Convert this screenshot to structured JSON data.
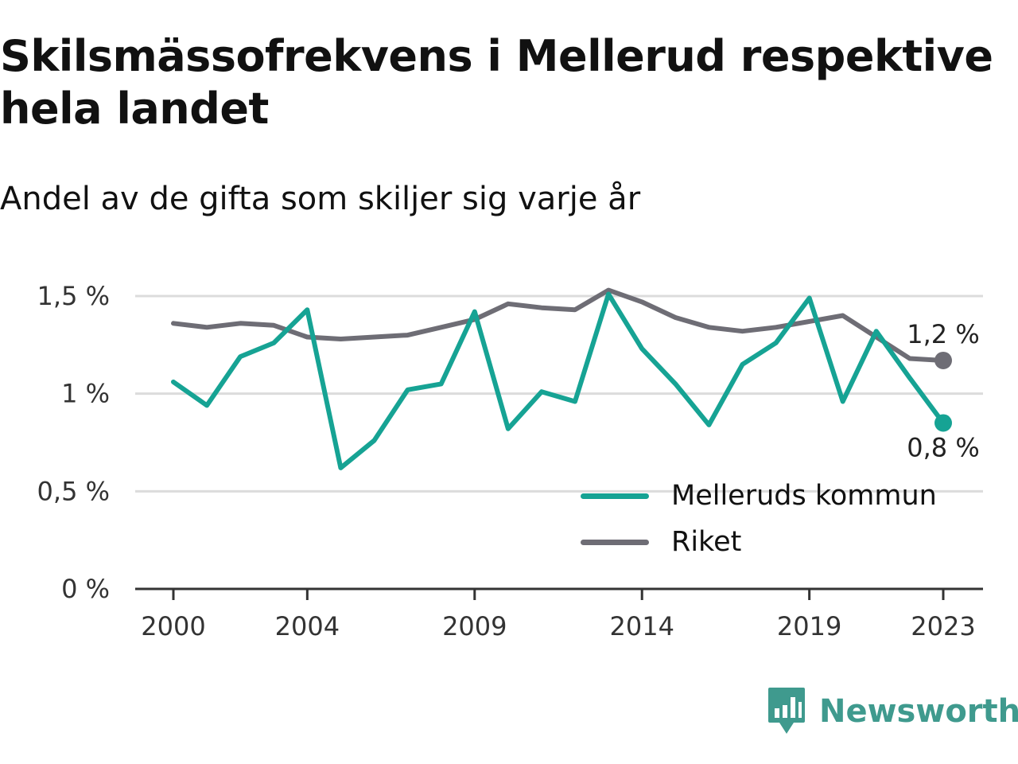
{
  "title": "Skilsmässofrekvens i Mellerud respektive hela landet",
  "subtitle": "Andel av de gifta som skiljer sig varje år",
  "brand": {
    "name": "Newsworthy",
    "icon": "newsworthy-logo-icon",
    "color": "#3f9a8e"
  },
  "chart_data": {
    "type": "line",
    "x": [
      2000,
      2001,
      2002,
      2003,
      2004,
      2005,
      2006,
      2007,
      2008,
      2009,
      2010,
      2011,
      2012,
      2013,
      2014,
      2015,
      2016,
      2017,
      2018,
      2019,
      2020,
      2021,
      2022,
      2023
    ],
    "x_ticks": [
      "2000",
      "2004",
      "2009",
      "2014",
      "2019",
      "2023"
    ],
    "y_ticks": [
      "0 %",
      "0,5 %",
      "1 %",
      "1,5 %"
    ],
    "ylim": [
      0,
      1.5
    ],
    "grid": true,
    "legend_position": "lower-right",
    "series": [
      {
        "name": "Melleruds kommun",
        "color": "#16a394",
        "values": [
          1.06,
          0.94,
          1.19,
          1.26,
          1.43,
          0.62,
          0.76,
          1.02,
          1.05,
          1.42,
          0.82,
          1.01,
          0.96,
          1.51,
          1.23,
          1.05,
          0.84,
          1.15,
          1.26,
          1.49,
          0.96,
          1.32,
          1.08,
          0.85
        ],
        "end_label": "0,8 %"
      },
      {
        "name": "Riket",
        "color": "#6e6d75",
        "values": [
          1.36,
          1.34,
          1.36,
          1.35,
          1.29,
          1.28,
          1.29,
          1.3,
          1.34,
          1.38,
          1.46,
          1.44,
          1.43,
          1.53,
          1.47,
          1.39,
          1.34,
          1.32,
          1.34,
          1.37,
          1.4,
          1.29,
          1.18,
          1.17
        ],
        "end_label": "1,2 %"
      }
    ]
  }
}
